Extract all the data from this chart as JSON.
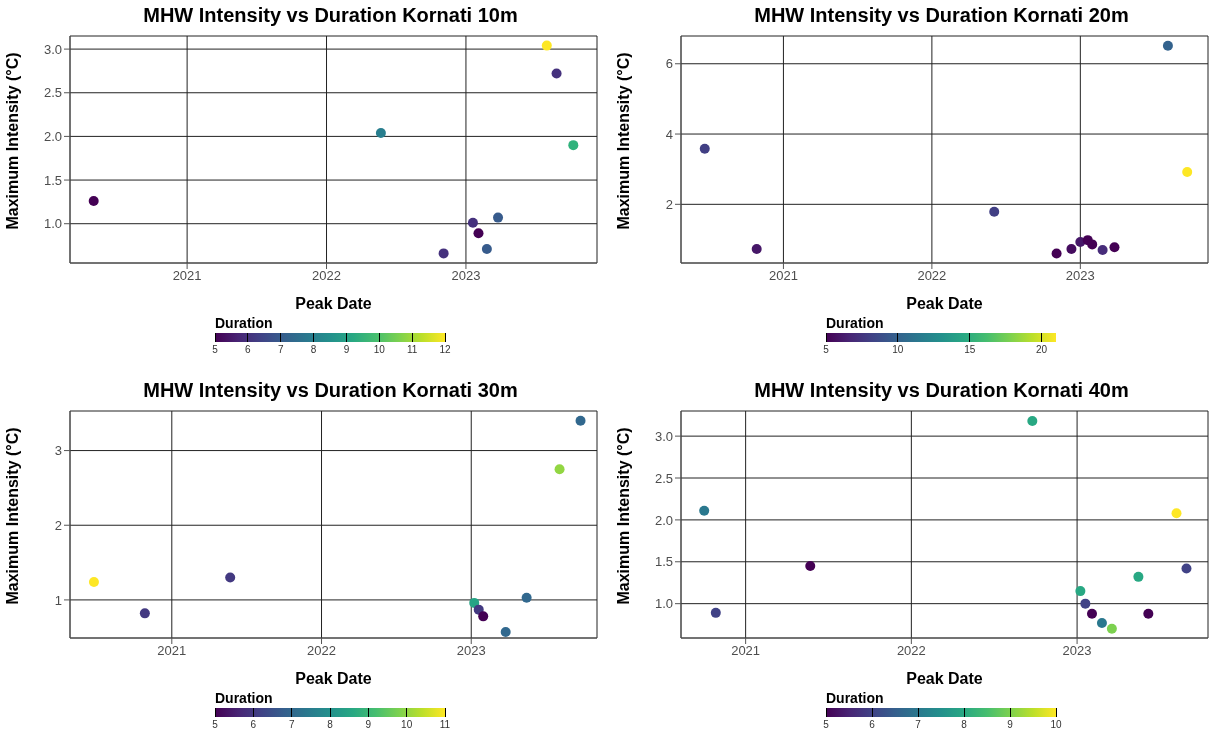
{
  "chart_data": [
    {
      "type": "scatter",
      "title": "MHW Intensity vs Duration Kornati 10m",
      "xlabel": "Peak Date",
      "ylabel": "Maximum Intensity (°C)",
      "clabel": "Duration",
      "marker": "circle",
      "grid": true,
      "x": [
        2020.33,
        2022.39,
        2022.84,
        2023.05,
        2023.09,
        2023.15,
        2023.23,
        2023.58,
        2023.65,
        2023.77
      ],
      "values": [
        1.26,
        2.04,
        0.66,
        1.01,
        0.89,
        0.71,
        1.07,
        3.04,
        2.72,
        1.9
      ],
      "cvalues": [
        5,
        8,
        6,
        6,
        5,
        7,
        7,
        12,
        6,
        9.5
      ],
      "clim": [
        5,
        12
      ],
      "cticks": [
        5,
        6,
        7,
        8,
        9,
        10,
        11,
        12
      ],
      "xlim": [
        2020.16,
        2023.94
      ],
      "xticks": [
        2021,
        2022,
        2023
      ],
      "ylim": [
        0.55,
        3.15
      ],
      "yticks": [
        {
          "value": 1,
          "label": "1.0"
        },
        {
          "value": 1.5,
          "label": "1.5"
        },
        {
          "value": 2,
          "label": "2.0"
        },
        {
          "value": 2.5,
          "label": "2.5"
        },
        {
          "value": 3,
          "label": "3.0"
        }
      ]
    },
    {
      "type": "scatter",
      "title": "MHW Intensity vs Duration Kornati 20m",
      "xlabel": "Peak Date",
      "ylabel": "Maximum Intensity (°C)",
      "clabel": "Duration",
      "marker": "circle",
      "grid": true,
      "x": [
        2020.47,
        2020.82,
        2022.42,
        2022.84,
        2022.94,
        2023.0,
        2023.05,
        2023.08,
        2023.15,
        2023.23,
        2023.59,
        2023.72
      ],
      "values": [
        3.58,
        0.73,
        1.79,
        0.6,
        0.73,
        0.93,
        0.98,
        0.86,
        0.7,
        0.78,
        6.51,
        2.92
      ],
      "cvalues": [
        8,
        6,
        8,
        5,
        5.5,
        6,
        5,
        5,
        7,
        5,
        10,
        21
      ],
      "clim": [
        5,
        21
      ],
      "cticks": [
        5,
        10,
        15,
        20
      ],
      "xlim": [
        2020.31,
        2023.86
      ],
      "xticks": [
        2021,
        2022,
        2023
      ],
      "ylim": [
        0.33,
        6.79
      ],
      "yticks": [
        2,
        4,
        6
      ]
    },
    {
      "type": "scatter",
      "title": "MHW Intensity vs Duration Kornati 30m",
      "xlabel": "Peak Date",
      "ylabel": "Maximum Intensity (°C)",
      "clabel": "Duration",
      "marker": "circle",
      "grid": true,
      "x": [
        2020.48,
        2020.82,
        2021.39,
        2023.02,
        2023.05,
        2023.08,
        2023.23,
        2023.37,
        2023.59,
        2023.73
      ],
      "values": [
        1.24,
        0.82,
        1.3,
        0.96,
        0.87,
        0.78,
        0.57,
        1.03,
        2.75,
        3.4
      ],
      "cvalues": [
        11,
        6,
        6,
        8.5,
        6,
        5,
        7,
        7,
        10,
        7
      ],
      "clim": [
        5,
        11
      ],
      "cticks": [
        5,
        6,
        7,
        8,
        9,
        10,
        11
      ],
      "xlim": [
        2020.32,
        2023.84
      ],
      "xticks": [
        2021,
        2022,
        2023
      ],
      "ylim": [
        0.49,
        3.53
      ],
      "yticks": [
        1,
        2,
        3
      ]
    },
    {
      "type": "scatter",
      "title": "MHW Intensity vs Duration Kornati 40m",
      "xlabel": "Peak Date",
      "ylabel": "Maximum Intensity (°C)",
      "clabel": "Duration",
      "marker": "circle",
      "grid": true,
      "x": [
        2020.75,
        2020.82,
        2021.39,
        2022.73,
        2023.02,
        2023.05,
        2023.09,
        2023.15,
        2023.21,
        2023.37,
        2023.43,
        2023.6,
        2023.66
      ],
      "values": [
        2.11,
        0.89,
        1.45,
        3.18,
        1.15,
        1.0,
        0.88,
        0.77,
        0.7,
        1.32,
        0.88,
        2.08,
        1.42
      ],
      "cvalues": [
        7,
        6,
        5,
        8,
        8,
        6,
        5,
        7,
        9,
        8,
        5,
        10,
        6
      ],
      "clim": [
        5,
        10
      ],
      "cticks": [
        5,
        6,
        7,
        8,
        9,
        10
      ],
      "xlim": [
        2020.61,
        2023.79
      ],
      "xticks": [
        2021,
        2022,
        2023
      ],
      "ylim": [
        0.59,
        3.3
      ],
      "yticks": [
        {
          "value": 1,
          "label": "1.0"
        },
        {
          "value": 1.5,
          "label": "1.5"
        },
        {
          "value": 2,
          "label": "2.0"
        },
        {
          "value": 2.5,
          "label": "2.5"
        },
        {
          "value": 3,
          "label": "3.0"
        }
      ]
    }
  ]
}
